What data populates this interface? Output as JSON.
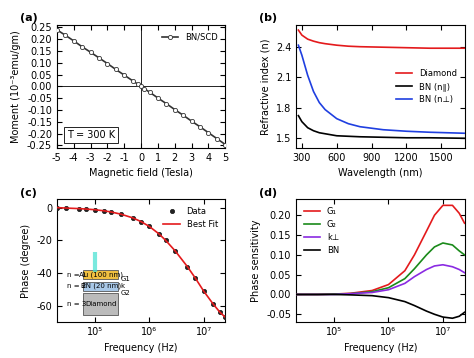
{
  "chart_data": [
    {
      "type": "line",
      "title": "(a)",
      "x_label": "Magnetic field (Tesla)",
      "y_label": "Moment (10⁻³emu/gm)",
      "annotations": [
        "T = 300 K"
      ],
      "xlim": [
        -5,
        5
      ],
      "ylim": [
        -0.26,
        0.26
      ],
      "xticks": [
        -5,
        -4,
        -3,
        -2,
        -1,
        0,
        1,
        2,
        3,
        4,
        5
      ],
      "yticks": [
        {
          "value": -0.25,
          "label": "-0.25"
        },
        {
          "value": -0.2,
          "label": "-0.20"
        },
        {
          "value": -0.15,
          "label": "-0.15"
        },
        {
          "value": -0.1,
          "label": "-0.10"
        },
        {
          "value": -0.05,
          "label": "-0.05"
        },
        {
          "value": 0,
          "label": "0.00"
        },
        {
          "value": 0.05,
          "label": "0.05"
        },
        {
          "value": 0.1,
          "label": "0.10"
        },
        {
          "value": 0.15,
          "label": "0.15"
        },
        {
          "value": 0.2,
          "label": "0.20"
        },
        {
          "value": 0.25,
          "label": "0.25"
        }
      ],
      "legend": "upper right",
      "series": [
        {
          "name": "BN/SCD",
          "color": "#333333",
          "marker": "circle",
          "line_style": "solid",
          "x": [
            -5,
            -4.5,
            -4,
            -3.5,
            -3,
            -2.5,
            -2,
            -1.5,
            -1,
            -0.5,
            -0.2,
            0,
            0.2,
            0.5,
            1,
            1.5,
            2,
            2.5,
            3,
            3.5,
            4,
            4.5,
            5
          ],
          "values": [
            0.24,
            0.217,
            0.193,
            0.168,
            0.145,
            0.121,
            0.097,
            0.072,
            0.048,
            0.024,
            0.01,
            0.0,
            -0.01,
            -0.024,
            -0.049,
            -0.073,
            -0.098,
            -0.122,
            -0.147,
            -0.171,
            -0.196,
            -0.221,
            -0.246
          ]
        }
      ]
    },
    {
      "type": "line",
      "title": "(b)",
      "x_label": "Wavelength (nm)",
      "y_label": "Refractive index (n)",
      "xlim": [
        250,
        1700
      ],
      "ylim": [
        1.4,
        2.62
      ],
      "xticks": [
        300,
        600,
        900,
        1200,
        1500
      ],
      "yticks": [
        1.5,
        1.8,
        2.1,
        2.4
      ],
      "legend": "center right",
      "series": [
        {
          "name": "Diamond",
          "color": "#e41a1c",
          "marker": "none",
          "line_style": "solid",
          "x": [
            270,
            300,
            350,
            400,
            450,
            500,
            600,
            700,
            800,
            1000,
            1200,
            1400,
            1700
          ],
          "values": [
            2.57,
            2.52,
            2.48,
            2.46,
            2.445,
            2.435,
            2.42,
            2.41,
            2.405,
            2.4,
            2.395,
            2.39,
            2.39
          ]
        },
        {
          "name": "BN (n∥)",
          "color": "#000000",
          "marker": "none",
          "line_style": "solid",
          "x": [
            270,
            300,
            350,
            400,
            450,
            500,
            600,
            700,
            800,
            1000,
            1200,
            1400,
            1700
          ],
          "values": [
            1.72,
            1.66,
            1.6,
            1.57,
            1.55,
            1.54,
            1.52,
            1.515,
            1.51,
            1.505,
            1.5,
            1.5,
            1.495
          ]
        },
        {
          "name": "BN (n⊥)",
          "color": "#1f3fe0",
          "marker": "none",
          "line_style": "solid",
          "x": [
            270,
            300,
            350,
            400,
            450,
            500,
            600,
            700,
            800,
            1000,
            1200,
            1400,
            1700
          ],
          "values": [
            2.42,
            2.32,
            2.12,
            1.96,
            1.85,
            1.78,
            1.69,
            1.64,
            1.61,
            1.58,
            1.565,
            1.555,
            1.545
          ]
        }
      ]
    },
    {
      "type": "line",
      "title": "(c)",
      "log": "x",
      "x_label": "Frequency (Hz)",
      "y_label": "Phase (degree)",
      "annotations": [
        "n = 1",
        "Au (100 nm)",
        "n = 2",
        "BN (20 nm)",
        "n = 3",
        "Diamond",
        "G1",
        "k",
        "G2"
      ],
      "xlim": [
        20000,
        25000000
      ],
      "ylim": [
        -70,
        5
      ],
      "xticks": [
        {
          "value": 100000,
          "label": "10⁵"
        },
        {
          "value": 1000000,
          "label": "10⁶"
        },
        {
          "value": 10000000,
          "label": "10⁷"
        }
      ],
      "yticks": [
        -60,
        -40,
        -20,
        0
      ],
      "legend": "upper right",
      "series": [
        {
          "name": "Data",
          "color": "#222222",
          "marker": "circle",
          "line_style": "none",
          "x": [
            20000,
            30000,
            50000,
            70000,
            100000,
            150000,
            200000,
            300000,
            500000,
            700000,
            1000000,
            1500000,
            2000000,
            3000000,
            5000000,
            7000000,
            10000000,
            15000000,
            20000000,
            25000000
          ],
          "values": [
            0,
            -0.3,
            -0.6,
            -0.9,
            -1.3,
            -2,
            -2.7,
            -4,
            -6.3,
            -8.5,
            -11.5,
            -16,
            -20,
            -26.5,
            -36,
            -43,
            -51,
            -59,
            -64,
            -67
          ]
        },
        {
          "name": "Best Fit",
          "color": "#e41a1c",
          "marker": "none",
          "line_style": "solid",
          "x": [
            20000,
            30000,
            50000,
            70000,
            100000,
            150000,
            200000,
            300000,
            500000,
            700000,
            1000000,
            1500000,
            2000000,
            3000000,
            5000000,
            7000000,
            10000000,
            15000000,
            20000000,
            25000000
          ],
          "values": [
            0,
            -0.3,
            -0.6,
            -0.9,
            -1.3,
            -2,
            -2.7,
            -4,
            -6.3,
            -8.5,
            -11.5,
            -16,
            -20,
            -26.5,
            -36,
            -43,
            -51,
            -59,
            -64,
            -67
          ]
        }
      ]
    },
    {
      "type": "line",
      "title": "(d)",
      "log": "x",
      "x_label": "Frequency (Hz)",
      "y_label": "Phase sensitivity",
      "xlim": [
        20000,
        25000000
      ],
      "ylim": [
        -0.07,
        0.24
      ],
      "xticks": [
        {
          "value": 100000,
          "label": "10⁵"
        },
        {
          "value": 1000000,
          "label": "10⁶"
        },
        {
          "value": 10000000,
          "label": "10⁷"
        }
      ],
      "yticks": [
        {
          "value": -0.05,
          "label": "-0.05"
        },
        {
          "value": 0,
          "label": "0.00"
        },
        {
          "value": 0.05,
          "label": "0.05"
        },
        {
          "value": 0.1,
          "label": "0.10"
        },
        {
          "value": 0.15,
          "label": "0.15"
        },
        {
          "value": 0.2,
          "label": "0.20"
        }
      ],
      "legend": "upper left",
      "series": [
        {
          "name": "G₁",
          "color": "#e41a1c",
          "marker": "none",
          "line_style": "solid",
          "x": [
            20000,
            50000,
            100000,
            200000,
            500000,
            1000000,
            2000000,
            3000000,
            5000000,
            7000000,
            10000000,
            15000000,
            20000000,
            25000000
          ],
          "values": [
            0,
            0,
            0.001,
            0.003,
            0.01,
            0.025,
            0.06,
            0.1,
            0.16,
            0.2,
            0.225,
            0.225,
            0.205,
            0.18
          ]
        },
        {
          "name": "G₂",
          "color": "#1a8a1a",
          "marker": "none",
          "line_style": "solid",
          "x": [
            20000,
            50000,
            100000,
            200000,
            500000,
            1000000,
            2000000,
            3000000,
            5000000,
            7000000,
            10000000,
            15000000,
            20000000,
            25000000
          ],
          "values": [
            0,
            0,
            0.001,
            0.002,
            0.007,
            0.017,
            0.04,
            0.065,
            0.1,
            0.12,
            0.13,
            0.125,
            0.11,
            0.1
          ]
        },
        {
          "name": "k⊥",
          "color": "#8a2be2",
          "marker": "none",
          "line_style": "solid",
          "x": [
            20000,
            50000,
            100000,
            200000,
            500000,
            1000000,
            2000000,
            3000000,
            5000000,
            7000000,
            10000000,
            15000000,
            20000000,
            25000000
          ],
          "values": [
            0,
            0,
            0,
            0.002,
            0.005,
            0.012,
            0.028,
            0.045,
            0.063,
            0.072,
            0.075,
            0.07,
            0.063,
            0.055
          ]
        },
        {
          "name": "BN",
          "color": "#000000",
          "marker": "none",
          "line_style": "solid",
          "x": [
            20000,
            50000,
            100000,
            200000,
            500000,
            1000000,
            2000000,
            3000000,
            5000000,
            7000000,
            10000000,
            15000000,
            20000000,
            25000000
          ],
          "values": [
            0,
            0,
            0,
            -0.001,
            -0.003,
            -0.008,
            -0.018,
            -0.028,
            -0.042,
            -0.05,
            -0.057,
            -0.06,
            -0.055,
            -0.045
          ]
        }
      ]
    }
  ]
}
